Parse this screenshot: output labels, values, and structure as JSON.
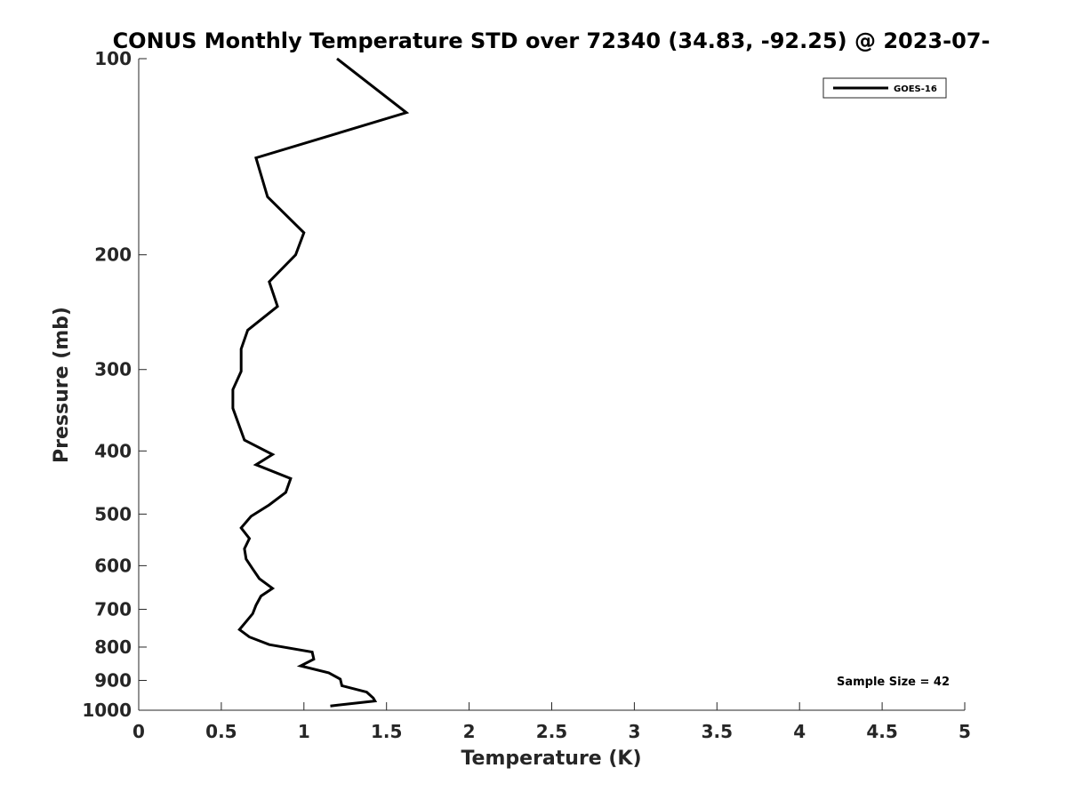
{
  "chart_data": {
    "type": "line",
    "title": "CONUS Monthly Temperature STD over 72340 (34.83, -92.25) @ 2023-07-",
    "xlabel": "Temperature (K)",
    "ylabel": "Pressure (mb)",
    "xlim": [
      0,
      5
    ],
    "ylim": [
      100,
      1000
    ],
    "y_scale": "log",
    "y_reversed": true,
    "grid": false,
    "legend_position": "top-right",
    "x_ticks": [
      0,
      0.5,
      1,
      1.5,
      2,
      2.5,
      3,
      3.5,
      4,
      4.5,
      5
    ],
    "x_tick_labels": [
      "0",
      "0.5",
      "1",
      "1.5",
      "2",
      "2.5",
      "3",
      "3.5",
      "4",
      "4.5",
      "5"
    ],
    "y_ticks": [
      100,
      200,
      300,
      400,
      500,
      600,
      700,
      800,
      900,
      1000
    ],
    "y_tick_labels": [
      "100",
      "200",
      "300",
      "400",
      "500",
      "600",
      "700",
      "800",
      "900",
      "1000"
    ],
    "series": [
      {
        "name": "GOES-16",
        "color": "#000000",
        "points": [
          [
            1.2,
            100
          ],
          [
            1.62,
            121
          ],
          [
            0.71,
            142
          ],
          [
            0.78,
            163
          ],
          [
            1.0,
            185
          ],
          [
            0.95,
            200
          ],
          [
            0.79,
            220
          ],
          [
            0.84,
            240
          ],
          [
            0.66,
            261
          ],
          [
            0.62,
            279
          ],
          [
            0.62,
            300
          ],
          [
            0.62,
            302
          ],
          [
            0.57,
            322
          ],
          [
            0.57,
            344
          ],
          [
            0.64,
            385
          ],
          [
            0.81,
            405
          ],
          [
            0.71,
            420
          ],
          [
            0.92,
            441
          ],
          [
            0.89,
            463
          ],
          [
            0.79,
            484
          ],
          [
            0.68,
            504
          ],
          [
            0.62,
            525
          ],
          [
            0.67,
            545
          ],
          [
            0.64,
            565
          ],
          [
            0.65,
            586
          ],
          [
            0.69,
            607
          ],
          [
            0.73,
            628
          ],
          [
            0.81,
            650
          ],
          [
            0.74,
            668
          ],
          [
            0.71,
            690
          ],
          [
            0.69,
            711
          ],
          [
            0.65,
            731
          ],
          [
            0.61,
            752
          ],
          [
            0.67,
            772
          ],
          [
            0.79,
            793
          ],
          [
            1.05,
            814
          ],
          [
            1.06,
            835
          ],
          [
            0.98,
            855
          ],
          [
            1.15,
            876
          ],
          [
            1.22,
            896
          ],
          [
            1.23,
            917
          ],
          [
            1.38,
            938
          ],
          [
            1.42,
            958
          ],
          [
            1.43,
            968
          ],
          [
            1.16,
            985
          ]
        ]
      }
    ],
    "annotations": [
      {
        "text": "Sample Size = 42"
      }
    ]
  }
}
